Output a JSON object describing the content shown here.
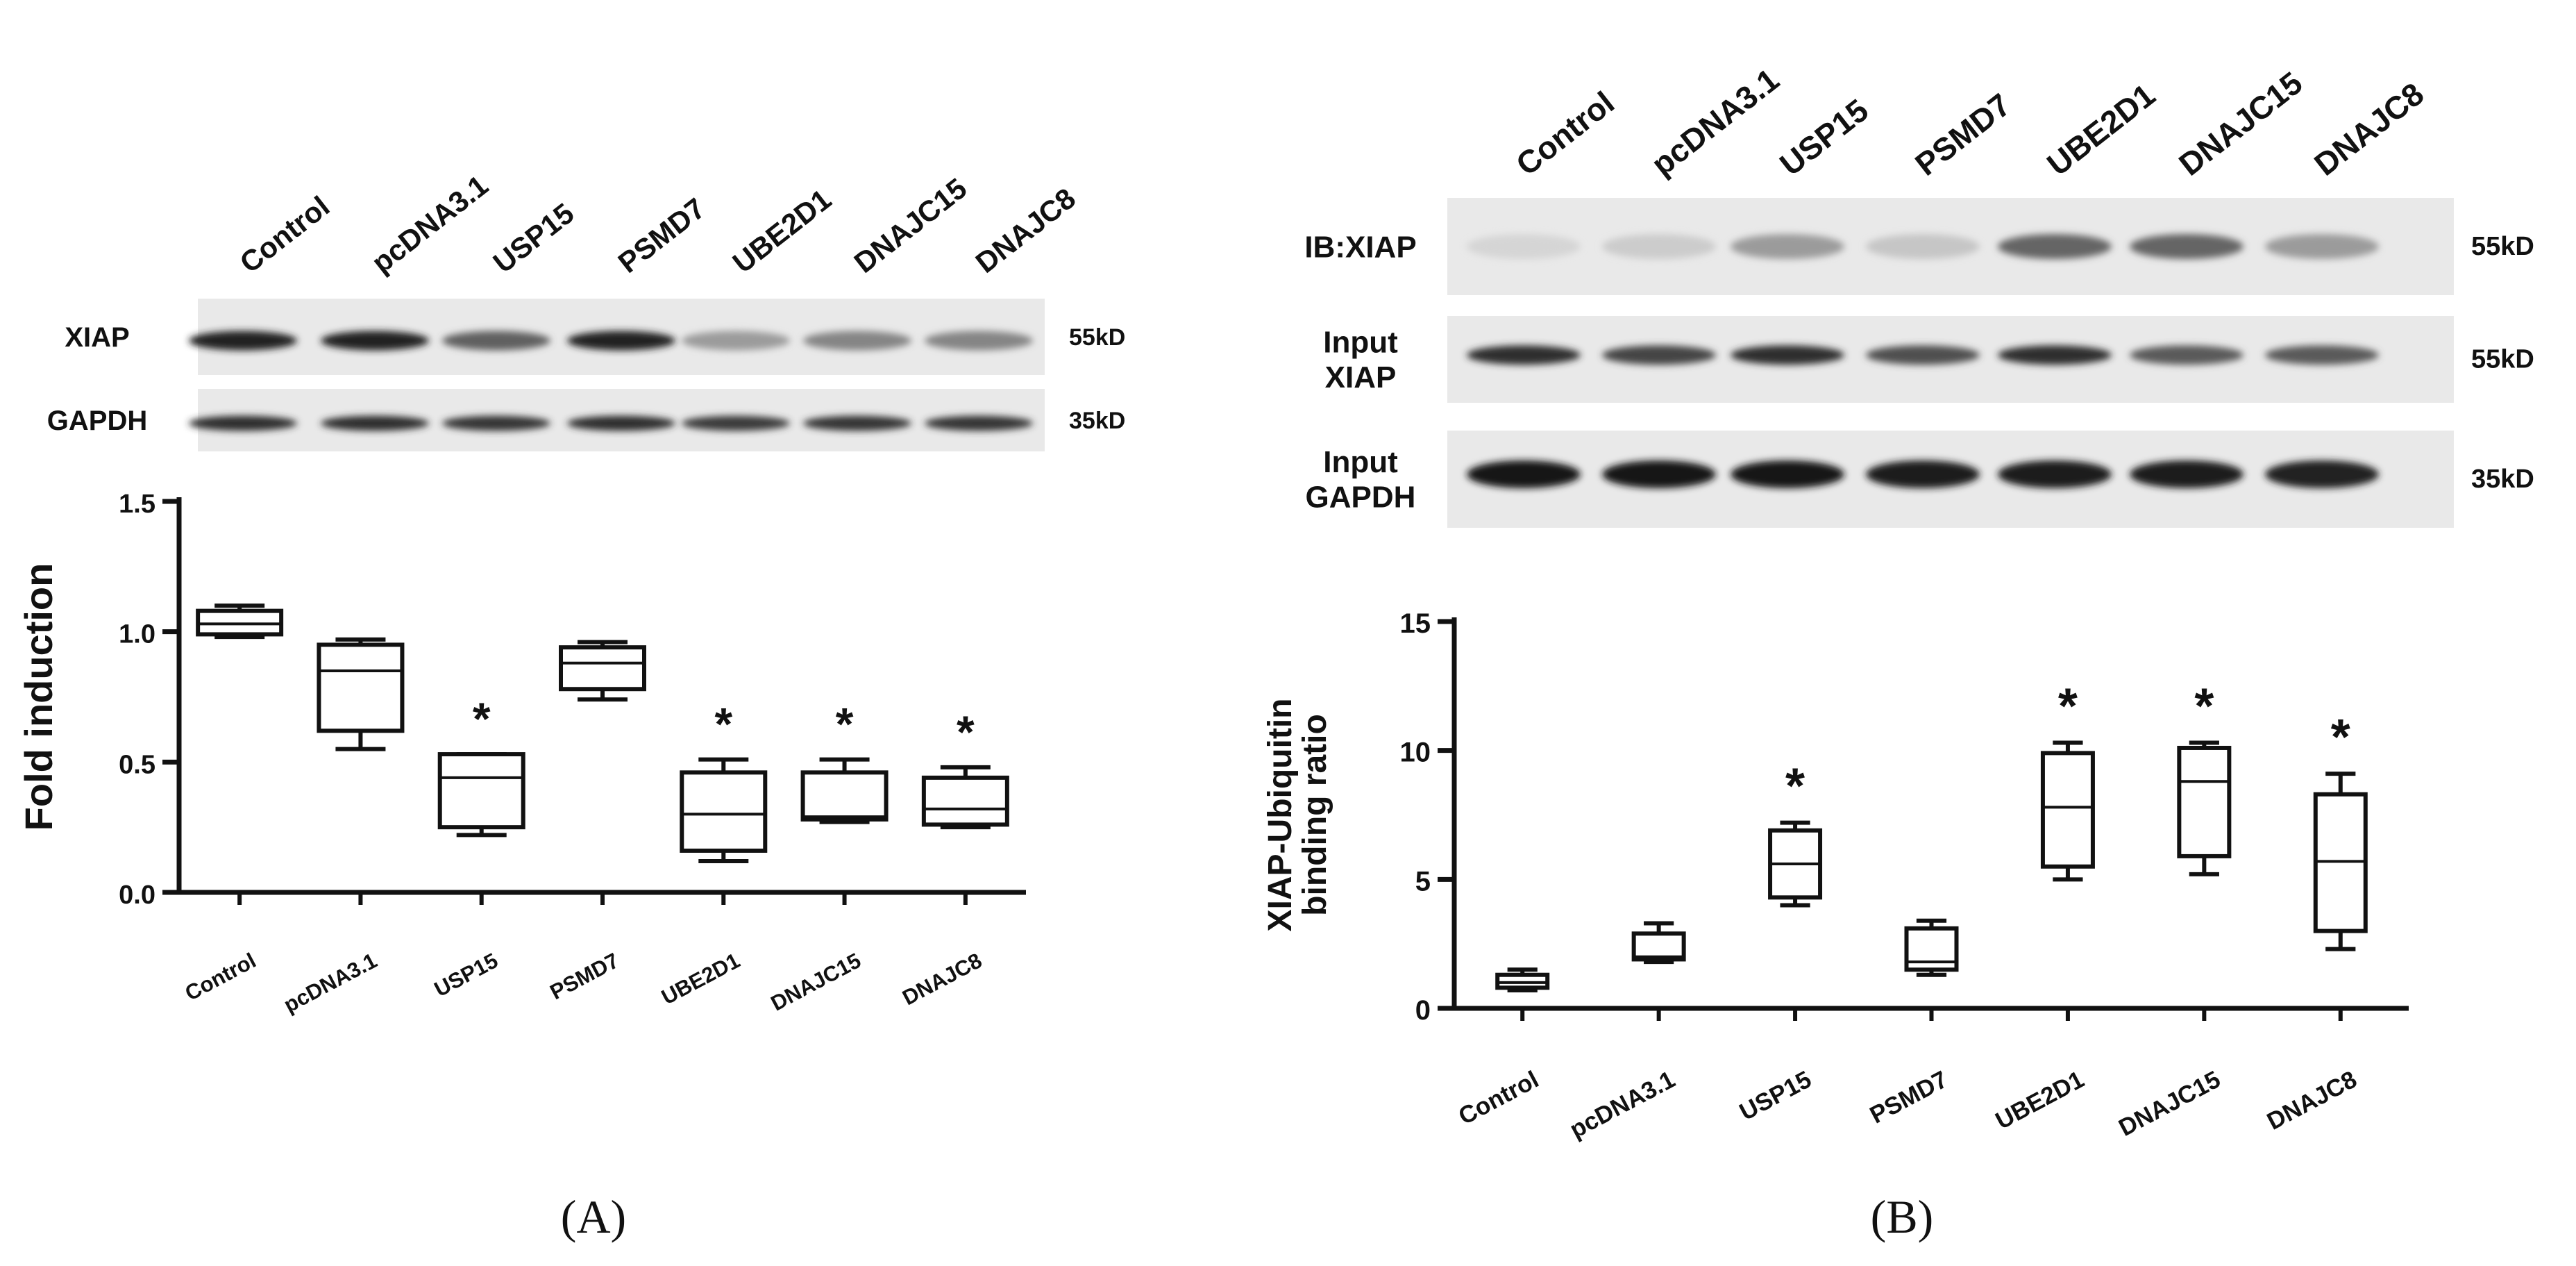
{
  "panels": [
    {
      "label": "A",
      "blot": {
        "lane_labels": [
          "Control",
          "pcDNA3.1",
          "USP15",
          "PSMD7",
          "UBE2D1",
          "DNAJC15",
          "DNAJC8"
        ],
        "rows": [
          {
            "label": "XIAP",
            "size": "55kD",
            "intensity": [
              0.92,
              0.92,
              0.62,
              0.92,
              0.35,
              0.45,
              0.45
            ]
          },
          {
            "label": "GAPDH",
            "size": "35kD",
            "intensity": [
              0.85,
              0.85,
              0.82,
              0.85,
              0.8,
              0.82,
              0.82
            ]
          }
        ]
      }
    },
    {
      "label": "B",
      "blot": {
        "lane_labels": [
          "Control",
          "pcDNA3.1",
          "USP15",
          "PSMD7",
          "UBE2D1",
          "DNAJC15",
          "DNAJC8"
        ],
        "rows": [
          {
            "label": "IB:XIAP",
            "size": "55kD",
            "intensity": [
              0.08,
              0.12,
              0.35,
              0.15,
              0.6,
              0.6,
              0.35
            ]
          },
          {
            "label": "Input\nXIAP",
            "size": "55kD",
            "intensity": [
              0.85,
              0.75,
              0.85,
              0.7,
              0.85,
              0.65,
              0.65
            ]
          },
          {
            "label": "Input\nGAPDH",
            "size": "35kD",
            "intensity": [
              0.98,
              0.98,
              0.98,
              0.95,
              0.95,
              0.95,
              0.92
            ]
          }
        ]
      }
    }
  ],
  "chart_data": [
    {
      "type": "box",
      "panel": "A",
      "categories": [
        "Control",
        "pcDNA3.1",
        "USP15",
        "PSMD7",
        "UBE2D1",
        "DNAJC15",
        "DNAJC8"
      ],
      "boxes": [
        {
          "min": 0.98,
          "q1": 0.99,
          "median": 1.03,
          "q3": 1.08,
          "max": 1.1,
          "sig": ""
        },
        {
          "min": 0.55,
          "q1": 0.62,
          "median": 0.85,
          "q3": 0.95,
          "max": 0.97,
          "sig": ""
        },
        {
          "min": 0.22,
          "q1": 0.25,
          "median": 0.44,
          "q3": 0.53,
          "max": 0.53,
          "sig": "*"
        },
        {
          "min": 0.74,
          "q1": 0.78,
          "median": 0.88,
          "q3": 0.94,
          "max": 0.96,
          "sig": ""
        },
        {
          "min": 0.12,
          "q1": 0.16,
          "median": 0.3,
          "q3": 0.46,
          "max": 0.51,
          "sig": "*"
        },
        {
          "min": 0.27,
          "q1": 0.28,
          "median": 0.29,
          "q3": 0.46,
          "max": 0.51,
          "sig": "*"
        },
        {
          "min": 0.25,
          "q1": 0.26,
          "median": 0.32,
          "q3": 0.44,
          "max": 0.48,
          "sig": "*"
        }
      ],
      "xlabel": "",
      "ylabel": "Fold induction",
      "ylim": [
        0,
        1.5
      ],
      "yticks": [
        "0.0",
        "0.5",
        "1.0",
        "1.5"
      ]
    },
    {
      "type": "box",
      "panel": "B",
      "categories": [
        "Control",
        "pcDNA3.1",
        "USP15",
        "PSMD7",
        "UBE2D1",
        "DNAJC15",
        "DNAJC8"
      ],
      "boxes": [
        {
          "min": 0.7,
          "q1": 0.8,
          "median": 1.0,
          "q3": 1.3,
          "max": 1.5,
          "sig": ""
        },
        {
          "min": 1.8,
          "q1": 1.9,
          "median": 2.0,
          "q3": 2.9,
          "max": 3.3,
          "sig": ""
        },
        {
          "min": 4.0,
          "q1": 4.3,
          "median": 5.6,
          "q3": 6.9,
          "max": 7.2,
          "sig": "*"
        },
        {
          "min": 1.3,
          "q1": 1.5,
          "median": 1.8,
          "q3": 3.1,
          "max": 3.4,
          "sig": ""
        },
        {
          "min": 5.0,
          "q1": 5.5,
          "median": 7.8,
          "q3": 9.9,
          "max": 10.3,
          "sig": "*"
        },
        {
          "min": 5.2,
          "q1": 5.9,
          "median": 8.8,
          "q3": 10.1,
          "max": 10.3,
          "sig": "*"
        },
        {
          "min": 2.3,
          "q1": 3.0,
          "median": 5.7,
          "q3": 8.3,
          "max": 9.1,
          "sig": "*"
        }
      ],
      "xlabel": "",
      "ylabel": "XIAP-Ubiquitin\nbinding ratio",
      "ylim": [
        0,
        15
      ],
      "yticks": [
        "0",
        "5",
        "10",
        "15"
      ]
    }
  ]
}
